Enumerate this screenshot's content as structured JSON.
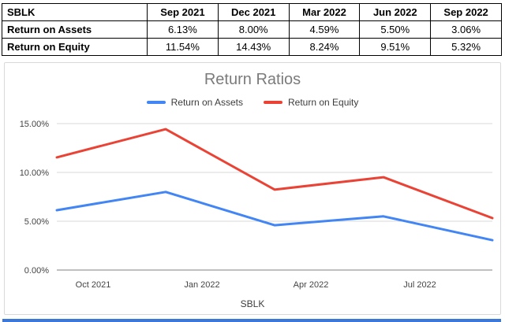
{
  "table": {
    "ticker": "SBLK",
    "columns": [
      "Sep 2021",
      "Dec 2021",
      "Mar 2022",
      "Jun 2022",
      "Sep 2022"
    ],
    "rows": [
      {
        "label": "Return on Assets",
        "values": [
          "6.13%",
          "8.00%",
          "4.59%",
          "5.50%",
          "3.06%"
        ]
      },
      {
        "label": "Return on Equity",
        "values": [
          "11.54%",
          "14.43%",
          "8.24%",
          "9.51%",
          "5.32%"
        ]
      }
    ]
  },
  "chart_data": {
    "type": "line",
    "title": "Return Ratios",
    "xlabel": "SBLK",
    "ylabel": "",
    "grid": true,
    "legend_position": "top",
    "x_categories": [
      "Sep 2021",
      "Dec 2021",
      "Mar 2022",
      "Jun 2022",
      "Sep 2022"
    ],
    "x_months": [
      0,
      3,
      6,
      9,
      12
    ],
    "x_month_range": [
      0,
      12
    ],
    "x_ticks": [
      {
        "month": 1,
        "label": "Oct 2021"
      },
      {
        "month": 4,
        "label": "Jan 2022"
      },
      {
        "month": 7,
        "label": "Apr 2022"
      },
      {
        "month": 10,
        "label": "Jul 2022"
      }
    ],
    "ylim": [
      0,
      15
    ],
    "y_ticks": [
      {
        "value": 0,
        "label": "0.00%"
      },
      {
        "value": 5,
        "label": "5.00%"
      },
      {
        "value": 10,
        "label": "10.00%"
      },
      {
        "value": 15,
        "label": "15.00%"
      }
    ],
    "series": [
      {
        "name": "Return on Assets",
        "color": "#4285f4",
        "values": [
          6.13,
          8.0,
          4.59,
          5.5,
          3.06
        ]
      },
      {
        "name": "Return on Equity",
        "color": "#ea4335",
        "values": [
          11.54,
          14.43,
          8.24,
          9.51,
          5.32
        ]
      }
    ],
    "gridline_color": "#d9d9d9",
    "baseline_color": "#808080"
  },
  "next_section": {
    "strip_color": "#3c78d8"
  }
}
